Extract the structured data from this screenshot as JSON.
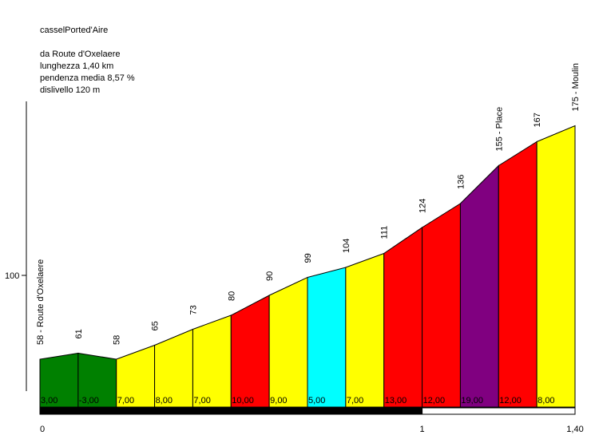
{
  "chart_data": {
    "type": "area",
    "title": "casselPorted'Aire",
    "info_lines": [
      "da Route d'Oxelaere",
      "lunghezza 1,40 km",
      "pendenza media 8,57 %",
      "dislivello 120 m"
    ],
    "y_tick": {
      "value": 100,
      "label": "100"
    },
    "x_ticks": [
      {
        "value": 0,
        "label": "0"
      },
      {
        "value": 1,
        "label": "1"
      },
      {
        "value": 1.4,
        "label": "1,40"
      }
    ],
    "x_range": [
      0,
      1.4
    ],
    "points": [
      {
        "x": 0.0,
        "label": "58 - Route d'Oxelaere"
      },
      {
        "x": 0.1,
        "label": "61"
      },
      {
        "x": 0.2,
        "label": "58"
      },
      {
        "x": 0.3,
        "label": "65"
      },
      {
        "x": 0.4,
        "label": "73"
      },
      {
        "x": 0.5,
        "label": "80"
      },
      {
        "x": 0.6,
        "label": "90"
      },
      {
        "x": 0.7,
        "label": "99"
      },
      {
        "x": 0.8,
        "label": "104"
      },
      {
        "x": 0.9,
        "label": "111"
      },
      {
        "x": 1.0,
        "label": "124"
      },
      {
        "x": 1.1,
        "label": "136"
      },
      {
        "x": 1.2,
        "label": "155 - Place"
      },
      {
        "x": 1.3,
        "label": "167"
      },
      {
        "x": 1.4,
        "label": "175 - Moulin"
      }
    ],
    "elevations": [
      58,
      61,
      58,
      65,
      73,
      80,
      90,
      99,
      104,
      111,
      124,
      136,
      155,
      167,
      175
    ],
    "segments": [
      {
        "grade_label": "3,00",
        "color": "#008000"
      },
      {
        "grade_label": "-3,00",
        "color": "#008000"
      },
      {
        "grade_label": "7,00",
        "color": "#ffff00"
      },
      {
        "grade_label": "8,00",
        "color": "#ffff00"
      },
      {
        "grade_label": "7,00",
        "color": "#ffff00"
      },
      {
        "grade_label": "10,00",
        "color": "#ff0000"
      },
      {
        "grade_label": "9,00",
        "color": "#ffff00"
      },
      {
        "grade_label": "5,00",
        "color": "#00ffff"
      },
      {
        "grade_label": "7,00",
        "color": "#ffff00"
      },
      {
        "grade_label": "13,00",
        "color": "#ff0000"
      },
      {
        "grade_label": "12,00",
        "color": "#ff0000"
      },
      {
        "grade_label": "19,00",
        "color": "#800080"
      },
      {
        "grade_label": "12,00",
        "color": "#ff0000"
      },
      {
        "grade_label": "8,00",
        "color": "#ffff00"
      }
    ],
    "distance_bar": [
      {
        "from": 0,
        "to": 1,
        "color": "#000000"
      },
      {
        "from": 1,
        "to": 1.4,
        "color": "#ffffff"
      }
    ],
    "grid": false,
    "legend": "none"
  }
}
